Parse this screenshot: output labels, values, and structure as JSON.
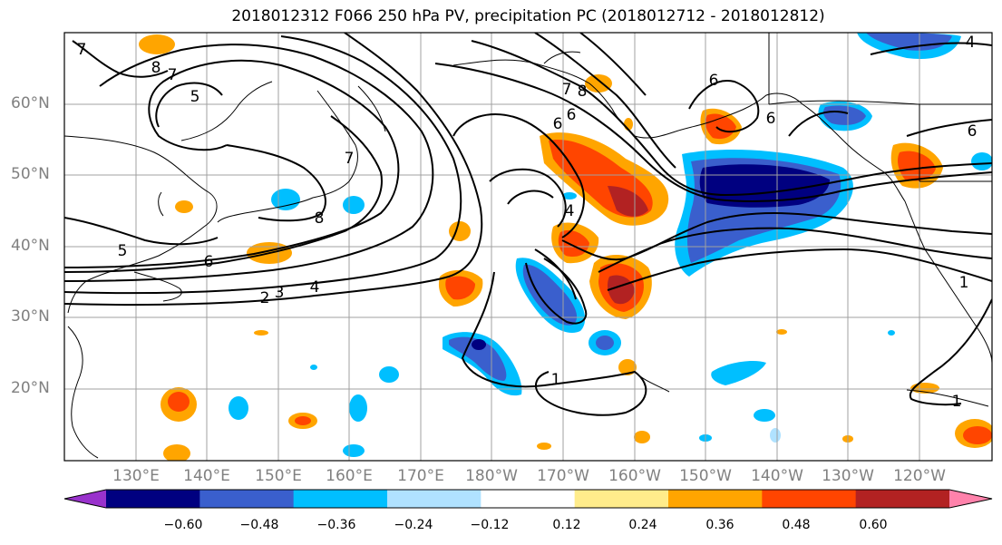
{
  "title": "2018012312 F066 250 hPa PV, precipitation PC (2018012712 - 2018012812)",
  "lat_labels": [
    "60°N",
    "50°N",
    "40°N",
    "30°N",
    "20°N"
  ],
  "lon_labels": [
    "130°E",
    "140°E",
    "150°E",
    "160°E",
    "170°E",
    "180°W",
    "170°W",
    "160°W",
    "150°W",
    "140°W",
    "130°W",
    "120°W"
  ],
  "contour_labels": [
    "7",
    "8",
    "7",
    "5",
    "7",
    "8",
    "6",
    "5",
    "2",
    "3",
    "4",
    "7",
    "8",
    "6",
    "6",
    "4",
    "6",
    "6",
    "6",
    "1",
    "1",
    "1",
    "4"
  ],
  "colorbar": {
    "ticks": [
      "−0.60",
      "−0.48",
      "−0.36",
      "−0.24",
      "−0.12",
      "0.12",
      "0.24",
      "0.36",
      "0.48",
      "0.60"
    ],
    "colors": [
      "#9932cc",
      "#000080",
      "#3a5fcd",
      "#00bfff",
      "#b0e2ff",
      "#ffffff",
      "#ffec8b",
      "#ffa500",
      "#ff4500",
      "#b22222",
      "#ff82ab"
    ]
  }
}
